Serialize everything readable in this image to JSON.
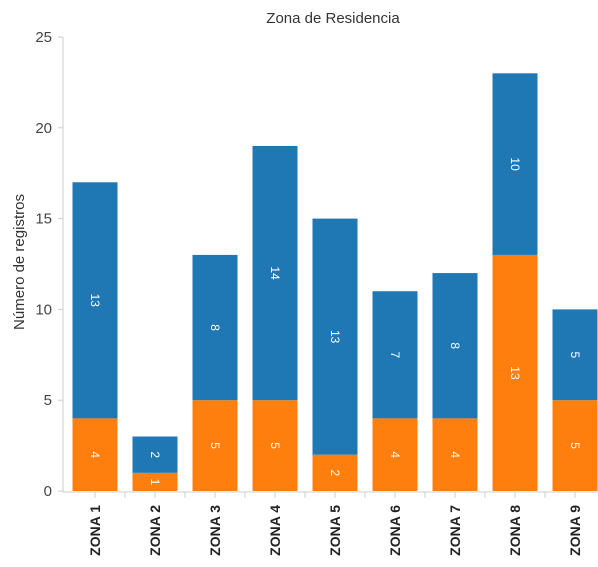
{
  "chart_data": {
    "type": "bar",
    "stacked": true,
    "title": "Zona de Residencia",
    "xlabel": "",
    "ylabel": "Número de registros",
    "ylim": [
      0,
      25
    ],
    "yticks": [
      0,
      5,
      10,
      15,
      20,
      25
    ],
    "grid": false,
    "categories": [
      "ZONA 1",
      "ZONA 2",
      "ZONA 3",
      "ZONA 4",
      "ZONA 5",
      "ZONA 6",
      "ZONA 7",
      "ZONA 8",
      "ZONA 9"
    ],
    "series": [
      {
        "color": "#ff7f0e",
        "values": [
          4,
          1,
          5,
          5,
          2,
          4,
          4,
          13,
          5
        ]
      },
      {
        "color": "#1f77b4",
        "values": [
          13,
          2,
          8,
          14,
          13,
          7,
          8,
          10,
          5
        ]
      }
    ]
  }
}
